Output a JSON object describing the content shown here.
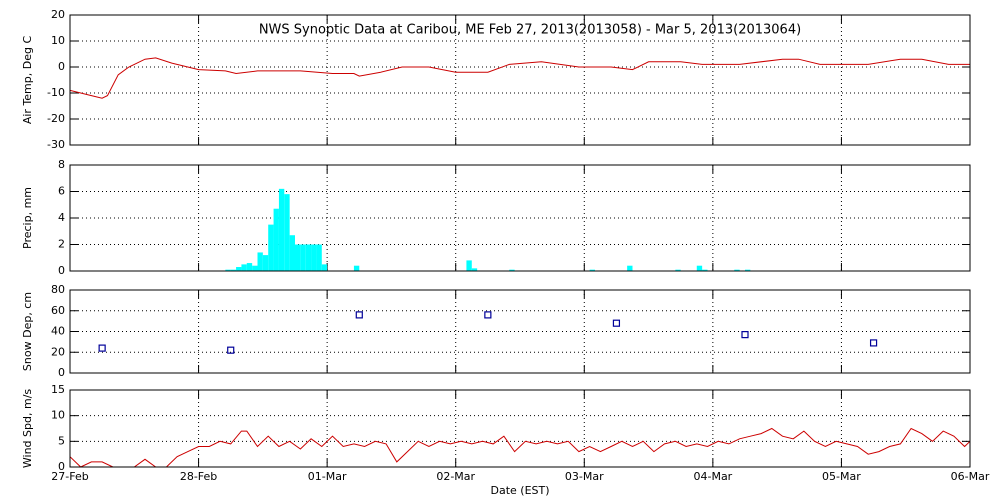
{
  "chart_data": [
    {
      "type": "line",
      "title": "NWS Synoptic Data at Caribou, ME   Feb 27, 2013(2013058) - Mar  5, 2013(2013064)",
      "ylabel": "Air Temp, Deg C",
      "color": "#cc0000",
      "grid": true,
      "ylim": [
        -30,
        20
      ],
      "yticks": [
        -30,
        -20,
        -10,
        0,
        10,
        20
      ],
      "x": [
        0,
        2,
        4,
        6,
        7,
        9,
        11,
        14,
        16,
        19,
        24,
        29,
        31,
        35,
        43,
        49,
        53,
        54,
        58,
        62,
        67,
        72,
        78,
        82,
        88,
        95,
        101,
        105,
        108,
        114,
        118,
        125,
        133,
        136,
        140,
        149,
        155,
        159,
        164,
        168
      ],
      "values": [
        -9,
        -10,
        -11,
        -12,
        -11,
        -3,
        0,
        3,
        3.5,
        1.5,
        -1,
        -1.5,
        -2.5,
        -1.5,
        -1.5,
        -2.5,
        -2.5,
        -3.5,
        -2,
        0,
        0,
        -2,
        -2,
        1,
        2,
        0,
        0,
        -1,
        2,
        2,
        1,
        1,
        3,
        3,
        1,
        1,
        3,
        3,
        1,
        1
      ]
    },
    {
      "type": "bar",
      "ylabel": "Precip, mm",
      "color": "#00ffff",
      "grid": true,
      "ylim": [
        0,
        8
      ],
      "yticks": [
        0,
        2,
        4,
        6,
        8
      ],
      "x": [
        29,
        30,
        31,
        32,
        33,
        34,
        35,
        36,
        37,
        38,
        39,
        40,
        41,
        42,
        43,
        44,
        45,
        46,
        47,
        53,
        74,
        75,
        82,
        97,
        104,
        113,
        117,
        118,
        124,
        126
      ],
      "values": [
        0.1,
        0.1,
        0.3,
        0.5,
        0.6,
        0.4,
        1.4,
        1.2,
        3.5,
        4.7,
        6.2,
        5.8,
        2.7,
        2,
        2,
        2,
        2,
        2,
        0.5,
        0.4,
        0.8,
        0.2,
        0.1,
        0.1,
        0.4,
        0.1,
        0.4,
        0.1,
        0.1,
        0.1
      ]
    },
    {
      "type": "scatter",
      "ylabel": "Snow Dep, cm",
      "color": "#000099",
      "grid": true,
      "ylim": [
        0,
        80
      ],
      "yticks": [
        0,
        20,
        40,
        60,
        80
      ],
      "x": [
        6,
        30,
        54,
        78,
        102,
        126,
        150
      ],
      "values": [
        24,
        22,
        56,
        56,
        48,
        37,
        29
      ]
    },
    {
      "type": "line",
      "ylabel": "Wind Spd, m/s",
      "color": "#cc0000",
      "grid": true,
      "xlabel": "Date (EST)",
      "xlim": [
        0,
        168
      ],
      "xticks": [
        {
          "value": 0,
          "label": "27-Feb"
        },
        {
          "value": 24,
          "label": "28-Feb"
        },
        {
          "value": 48,
          "label": "01-Mar"
        },
        {
          "value": 72,
          "label": "02-Mar"
        },
        {
          "value": 96,
          "label": "03-Mar"
        },
        {
          "value": 120,
          "label": "04-Mar"
        },
        {
          "value": 144,
          "label": "05-Mar"
        },
        {
          "value": 168,
          "label": "06-Mar"
        }
      ],
      "ylim": [
        0,
        15
      ],
      "yticks": [
        0,
        5,
        10,
        15
      ],
      "x": [
        0,
        2,
        4,
        6,
        8,
        12,
        14,
        16,
        18,
        20,
        22,
        24,
        26,
        28,
        30,
        32,
        33,
        35,
        37,
        39,
        41,
        43,
        45,
        47,
        49,
        51,
        53,
        55,
        57,
        59,
        61,
        63,
        65,
        67,
        69,
        71,
        73,
        75,
        77,
        79,
        81,
        83,
        85,
        87,
        89,
        91,
        93,
        95,
        97,
        99,
        101,
        103,
        105,
        107,
        109,
        111,
        113,
        115,
        117,
        119,
        121,
        123,
        125,
        127,
        129,
        131,
        133,
        135,
        137,
        139,
        141,
        143,
        145,
        147,
        149,
        151,
        153,
        155,
        157,
        159,
        161,
        163,
        165,
        167,
        168
      ],
      "values": [
        2,
        0,
        1,
        1,
        0,
        0,
        1.5,
        0,
        0,
        2,
        3,
        4,
        4,
        5,
        4.5,
        7,
        7,
        4,
        6,
        4,
        5,
        3.5,
        5.5,
        4,
        6,
        4,
        4.5,
        4,
        5,
        4.5,
        1,
        3,
        5,
        4,
        5,
        4.5,
        5,
        4.5,
        5,
        4.5,
        6,
        3,
        5,
        4.5,
        5,
        4.5,
        5,
        3,
        4,
        3,
        4,
        5,
        4,
        5,
        3,
        4.5,
        5,
        4,
        4.5,
        4,
        5,
        4.5,
        5.5,
        6,
        6.5,
        7.5,
        6,
        5.5,
        7,
        5,
        4,
        5,
        4.5,
        4,
        2.5,
        3,
        4,
        4.5,
        7.5,
        6.5,
        5,
        7,
        6,
        4,
        5
      ]
    }
  ]
}
